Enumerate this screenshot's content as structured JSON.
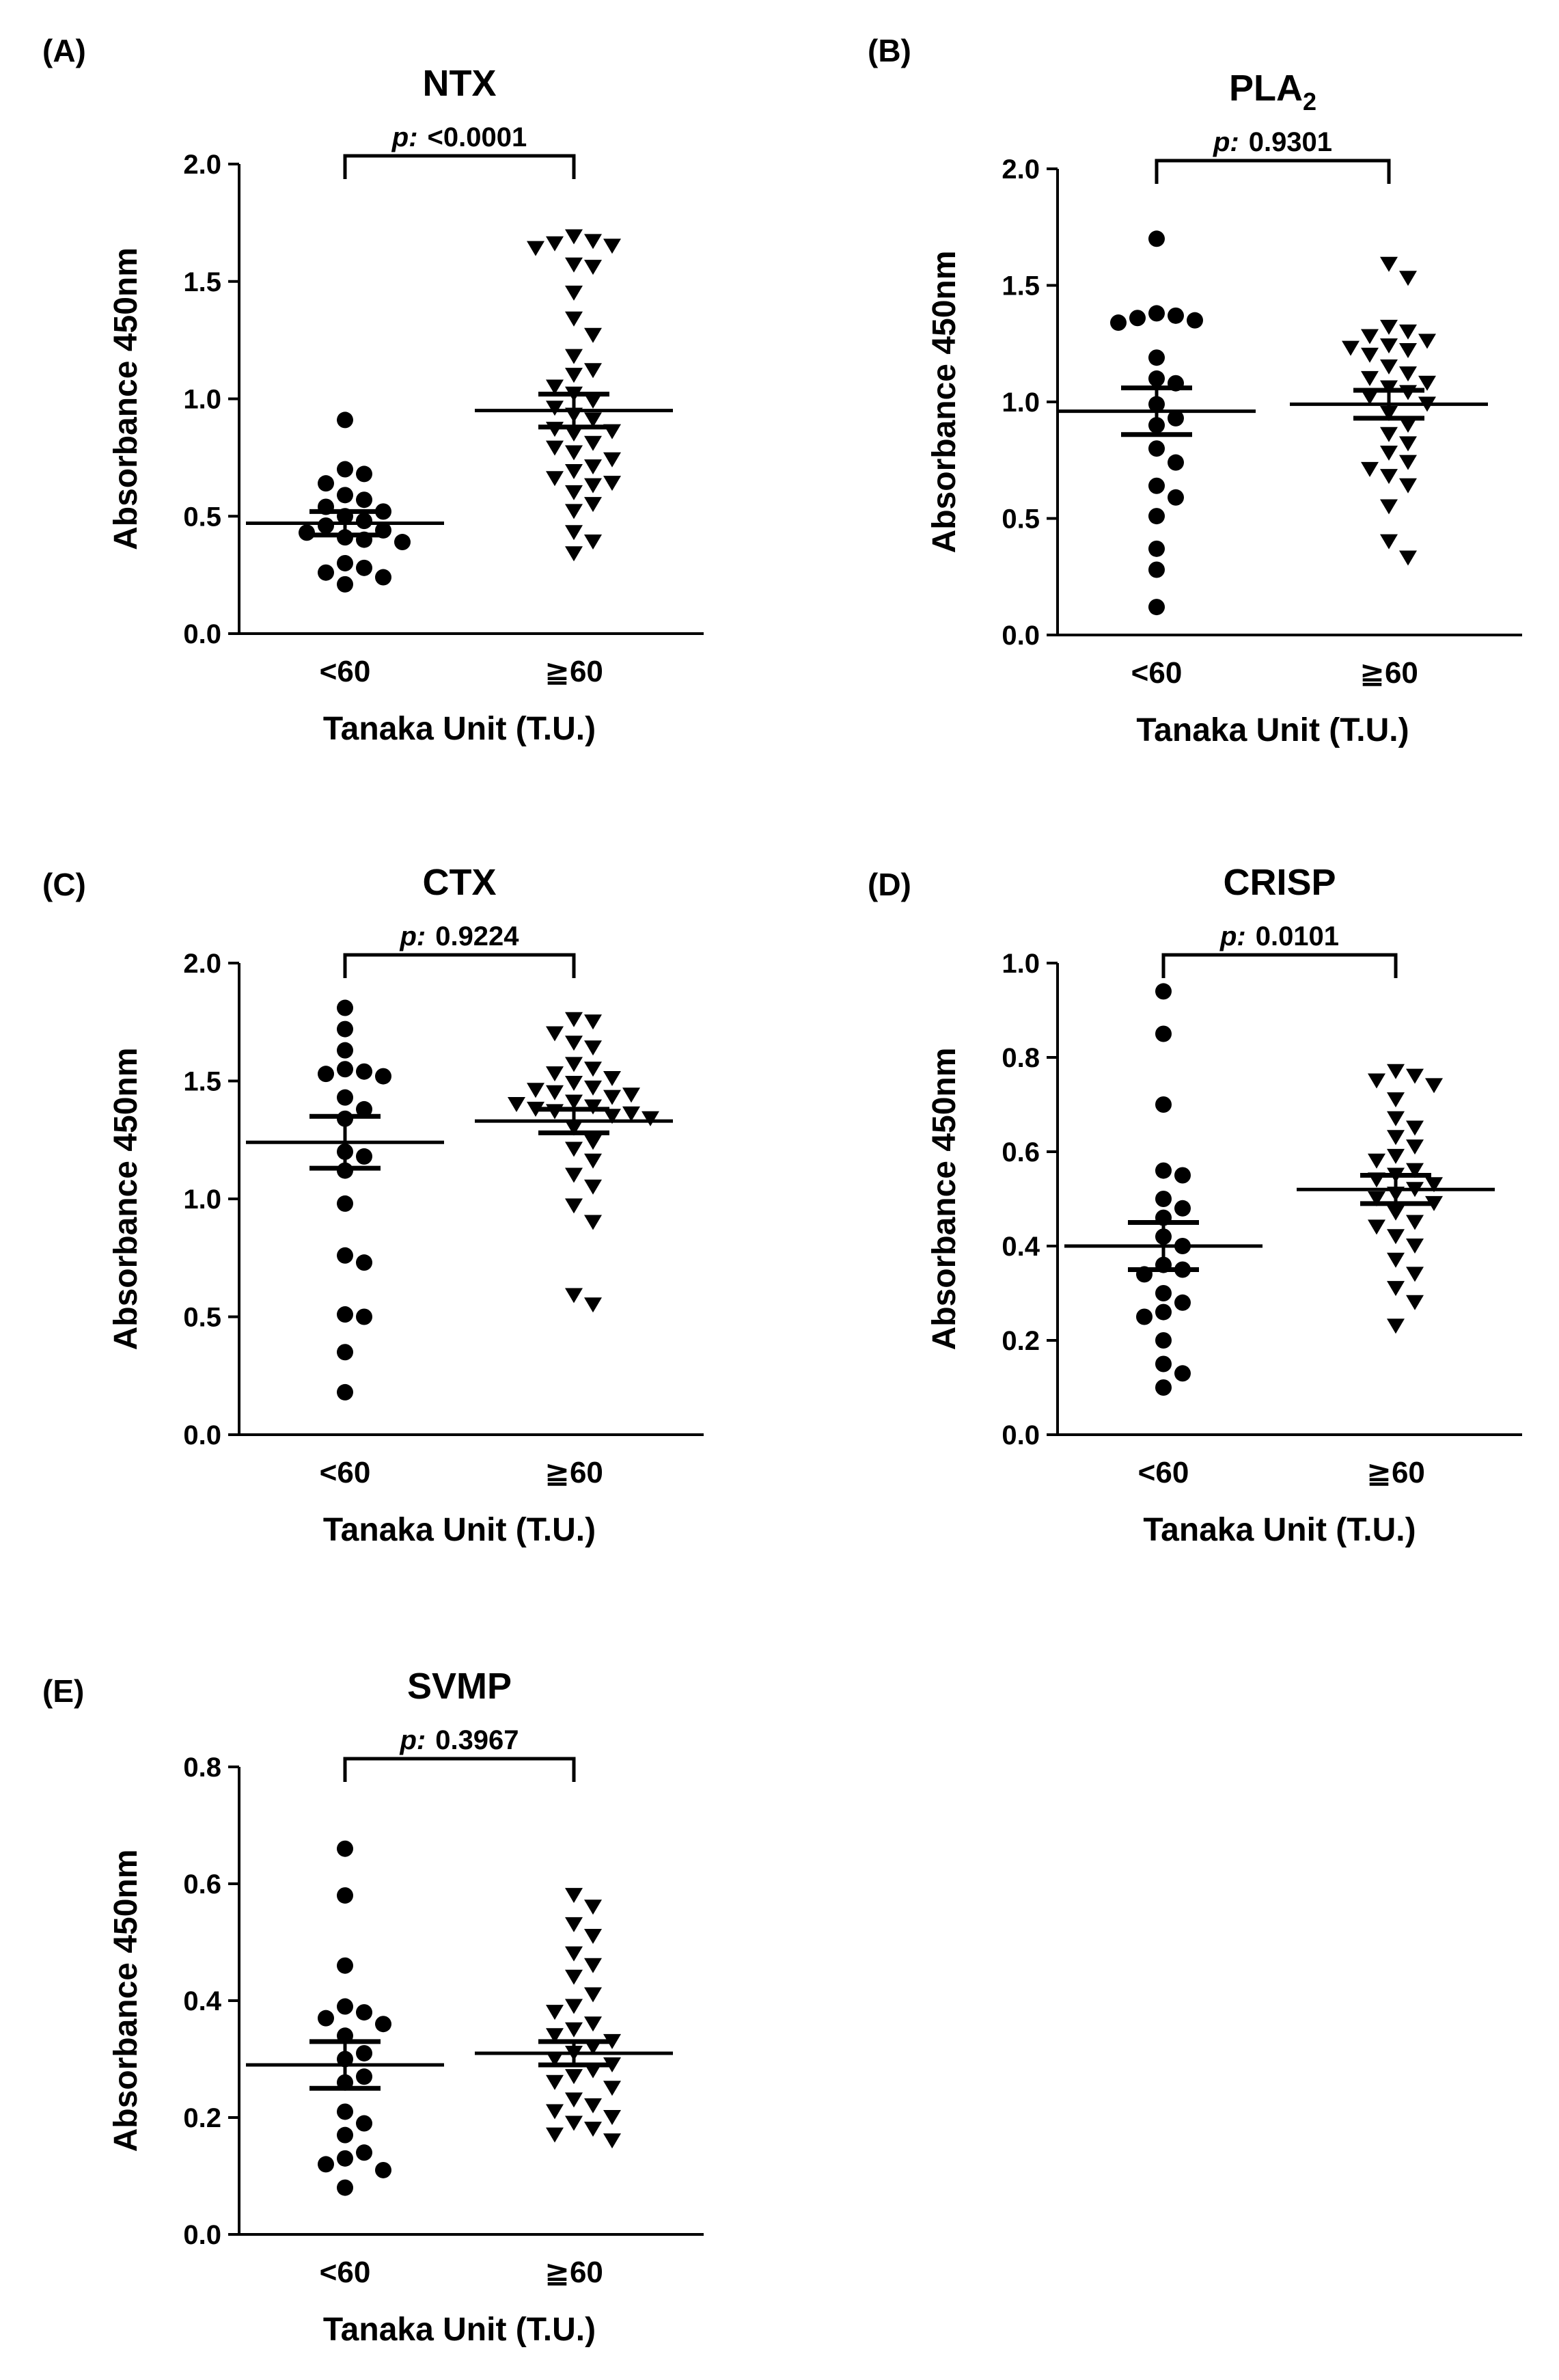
{
  "chart_data": [
    {
      "type": "scatter",
      "panel_label": "(A)",
      "title": "NTX",
      "title_sub": "",
      "xlabel": "Tanaka Unit (T.U.)",
      "ylabel": "Absorbance 450nm",
      "categories": [
        "<60",
        "≧60"
      ],
      "ylim": [
        0,
        2.0
      ],
      "yticks": [
        "0.0",
        "0.5",
        "1.0",
        "1.5",
        "2.0"
      ],
      "p_prefix": "p:",
      "p_value": "<0.0001",
      "series": [
        {
          "name": "<60",
          "marker": "circle",
          "mean": 0.47,
          "sem": 0.05,
          "values": [
            0.91,
            0.7,
            0.68,
            0.64,
            0.59,
            0.57,
            0.54,
            0.52,
            0.5,
            0.48,
            0.46,
            0.44,
            0.43,
            0.41,
            0.4,
            0.39,
            0.3,
            0.28,
            0.26,
            0.24,
            0.21
          ]
        },
        {
          "name": "≧60",
          "marker": "triangle",
          "mean": 0.95,
          "sem": 0.07,
          "values": [
            1.69,
            1.67,
            1.66,
            1.65,
            1.64,
            1.57,
            1.56,
            1.45,
            1.34,
            1.27,
            1.18,
            1.12,
            1.1,
            1.05,
            1.02,
            0.99,
            0.96,
            0.93,
            0.91,
            0.87,
            0.86,
            0.85,
            0.81,
            0.79,
            0.77,
            0.74,
            0.71,
            0.69,
            0.66,
            0.64,
            0.63,
            0.6,
            0.55,
            0.52,
            0.43,
            0.39,
            0.34
          ]
        }
      ]
    },
    {
      "type": "scatter",
      "panel_label": "(B)",
      "title": "PLA",
      "title_sub": "2",
      "xlabel": "Tanaka Unit (T.U.)",
      "ylabel": "Absorbance 450nm",
      "categories": [
        "<60",
        "≧60"
      ],
      "ylim": [
        0,
        2.0
      ],
      "yticks": [
        "0.0",
        "0.5",
        "1.0",
        "1.5",
        "2.0"
      ],
      "p_prefix": "p:",
      "p_value": "0.9301",
      "series": [
        {
          "name": "<60",
          "marker": "circle",
          "mean": 0.96,
          "sem": 0.1,
          "values": [
            1.7,
            1.38,
            1.37,
            1.36,
            1.35,
            1.34,
            1.19,
            1.1,
            1.08,
            0.99,
            0.93,
            0.9,
            0.8,
            0.74,
            0.64,
            0.59,
            0.51,
            0.37,
            0.28,
            0.12
          ]
        },
        {
          "name": "≧60",
          "marker": "triangle",
          "mean": 0.99,
          "sem": 0.06,
          "values": [
            1.59,
            1.53,
            1.32,
            1.3,
            1.28,
            1.26,
            1.24,
            1.23,
            1.22,
            1.2,
            1.15,
            1.12,
            1.1,
            1.08,
            1.06,
            1.04,
            1.02,
            0.99,
            0.95,
            0.9,
            0.86,
            0.82,
            0.78,
            0.74,
            0.71,
            0.68,
            0.64,
            0.55,
            0.4,
            0.33
          ]
        }
      ]
    },
    {
      "type": "scatter",
      "panel_label": "(C)",
      "title": "CTX",
      "title_sub": "",
      "xlabel": "Tanaka Unit (T.U.)",
      "ylabel": "Absorbance 450nm",
      "categories": [
        "<60",
        "≧60"
      ],
      "ylim": [
        0,
        2.0
      ],
      "yticks": [
        "0.0",
        "0.5",
        "1.0",
        "1.5",
        "2.0"
      ],
      "p_prefix": "p:",
      "p_value": "0.9224",
      "series": [
        {
          "name": "<60",
          "marker": "circle",
          "mean": 1.24,
          "sem": 0.11,
          "values": [
            1.81,
            1.72,
            1.63,
            1.55,
            1.54,
            1.53,
            1.52,
            1.43,
            1.38,
            1.34,
            1.2,
            1.18,
            1.12,
            0.98,
            0.76,
            0.73,
            0.51,
            0.5,
            0.35,
            0.18
          ]
        },
        {
          "name": "≧60",
          "marker": "triangle",
          "mean": 1.33,
          "sem": 0.05,
          "values": [
            1.76,
            1.75,
            1.7,
            1.66,
            1.64,
            1.57,
            1.55,
            1.53,
            1.51,
            1.49,
            1.47,
            1.46,
            1.45,
            1.44,
            1.43,
            1.41,
            1.4,
            1.39,
            1.38,
            1.37,
            1.36,
            1.35,
            1.34,
            1.3,
            1.24,
            1.21,
            1.16,
            1.1,
            1.05,
            0.97,
            0.9,
            0.59,
            0.55
          ]
        }
      ]
    },
    {
      "type": "scatter",
      "panel_label": "(D)",
      "title": "CRISP",
      "title_sub": "",
      "xlabel": "Tanaka Unit (T.U.)",
      "ylabel": "Absorbance 450nm",
      "categories": [
        "<60",
        "≧60"
      ],
      "ylim": [
        0,
        1.0
      ],
      "yticks": [
        "0.0",
        "0.2",
        "0.4",
        "0.6",
        "0.8",
        "1.0"
      ],
      "p_prefix": "p:",
      "p_value": "0.0101",
      "series": [
        {
          "name": "<60",
          "marker": "circle",
          "mean": 0.4,
          "sem": 0.05,
          "values": [
            0.94,
            0.85,
            0.7,
            0.56,
            0.55,
            0.5,
            0.48,
            0.46,
            0.42,
            0.4,
            0.36,
            0.35,
            0.34,
            0.3,
            0.28,
            0.26,
            0.25,
            0.2,
            0.15,
            0.13,
            0.1
          ]
        },
        {
          "name": "≧60",
          "marker": "triangle",
          "mean": 0.52,
          "sem": 0.03,
          "values": [
            0.77,
            0.76,
            0.75,
            0.74,
            0.71,
            0.67,
            0.65,
            0.63,
            0.61,
            0.59,
            0.58,
            0.56,
            0.55,
            0.54,
            0.53,
            0.52,
            0.51,
            0.5,
            0.49,
            0.47,
            0.45,
            0.44,
            0.42,
            0.4,
            0.37,
            0.34,
            0.31,
            0.28,
            0.23
          ]
        }
      ]
    },
    {
      "type": "scatter",
      "panel_label": "(E)",
      "title": "SVMP",
      "title_sub": "",
      "xlabel": "Tanaka Unit (T.U.)",
      "ylabel": "Absorbance 450nm",
      "categories": [
        "<60",
        "≧60"
      ],
      "ylim": [
        0,
        0.8
      ],
      "yticks": [
        "0.0",
        "0.2",
        "0.4",
        "0.6",
        "0.8"
      ],
      "p_prefix": "p:",
      "p_value": "0.3967",
      "series": [
        {
          "name": "<60",
          "marker": "circle",
          "mean": 0.29,
          "sem": 0.04,
          "values": [
            0.66,
            0.58,
            0.46,
            0.39,
            0.38,
            0.37,
            0.36,
            0.34,
            0.31,
            0.3,
            0.27,
            0.26,
            0.21,
            0.19,
            0.17,
            0.14,
            0.13,
            0.12,
            0.11,
            0.08
          ]
        },
        {
          "name": "≧60",
          "marker": "triangle",
          "mean": 0.31,
          "sem": 0.02,
          "values": [
            0.58,
            0.56,
            0.53,
            0.51,
            0.48,
            0.46,
            0.44,
            0.41,
            0.39,
            0.38,
            0.36,
            0.35,
            0.34,
            0.33,
            0.32,
            0.31,
            0.3,
            0.29,
            0.28,
            0.27,
            0.26,
            0.25,
            0.23,
            0.22,
            0.21,
            0.2,
            0.19,
            0.18,
            0.17,
            0.16
          ]
        }
      ]
    }
  ]
}
